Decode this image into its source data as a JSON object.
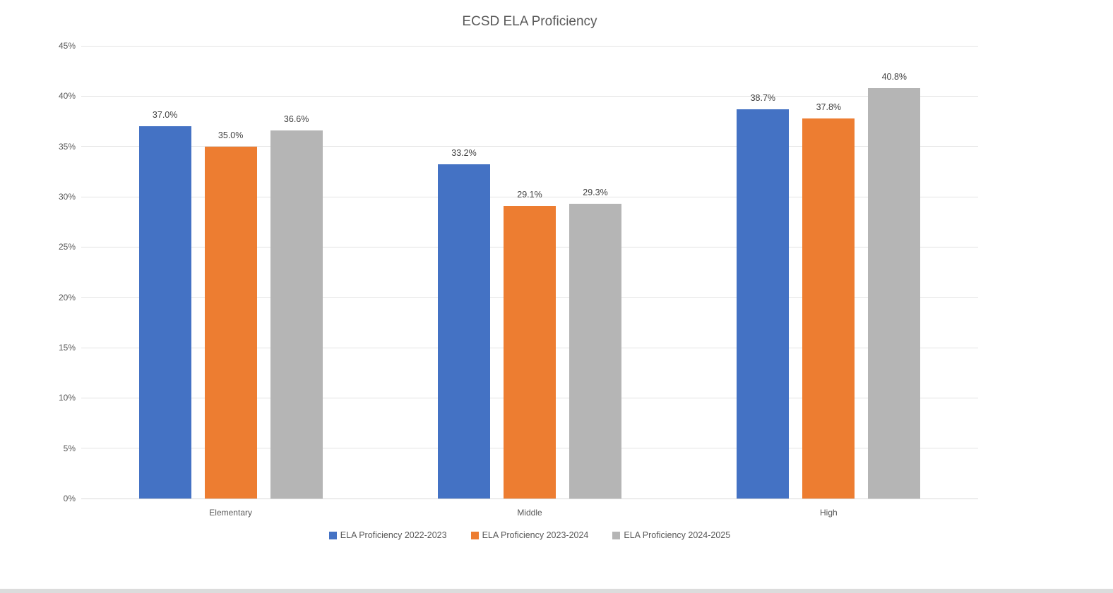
{
  "chart_data": {
    "type": "bar",
    "title": "ECSD ELA Proficiency",
    "categories": [
      "Elementary",
      "Middle",
      "High"
    ],
    "series": [
      {
        "name": "ELA Proficiency 2022-2023",
        "color": "#4472C4",
        "values": [
          37.0,
          33.2,
          38.7
        ],
        "labels": [
          "37.0%",
          "33.2%",
          "38.7%"
        ]
      },
      {
        "name": "ELA Proficiency 2023-2024",
        "color": "#ED7D31",
        "values": [
          35.0,
          29.1,
          37.8
        ],
        "labels": [
          "35.0%",
          "29.1%",
          "37.8%"
        ]
      },
      {
        "name": "ELA Proficiency 2024-2025",
        "color": "#B5B5B5",
        "values": [
          36.6,
          29.3,
          40.8
        ],
        "labels": [
          "36.6%",
          "29.3%",
          "40.8%"
        ]
      }
    ],
    "ylim": [
      0,
      45
    ],
    "ytick_step": 5,
    "ytick_labels": [
      "0%",
      "5%",
      "10%",
      "15%",
      "20%",
      "25%",
      "30%",
      "35%",
      "40%",
      "45%"
    ],
    "grid": true,
    "legend_position": "bottom",
    "axis_text_color": "#595959",
    "data_label_color": "#404040",
    "gridline_color": "#E3E3E3"
  }
}
